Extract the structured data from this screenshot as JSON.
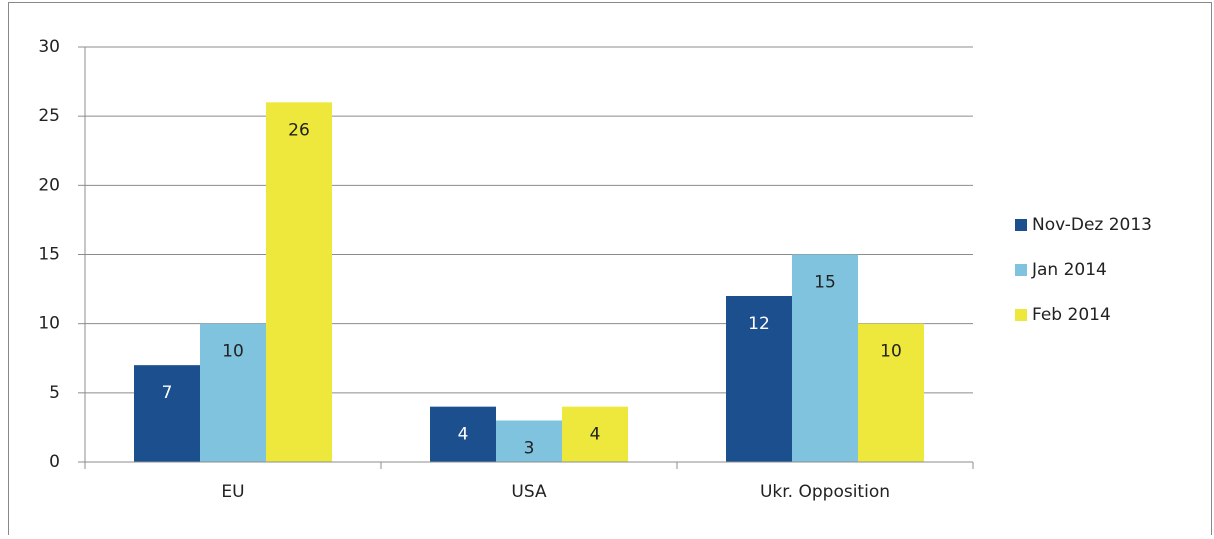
{
  "chart_data": {
    "type": "bar",
    "categories": [
      "EU",
      "USA",
      "Ukr. Opposition"
    ],
    "series": [
      {
        "name": "Nov-Dez 2013",
        "color": "#1b4f8e",
        "values": [
          7,
          4,
          12
        ]
      },
      {
        "name": "Jan 2014",
        "color": "#80c3df",
        "values": [
          10,
          3,
          15
        ]
      },
      {
        "name": "Feb 2014",
        "color": "#ede83b",
        "values": [
          26,
          4,
          10
        ]
      }
    ],
    "ylim": [
      0,
      30
    ],
    "yticks": [
      0,
      5,
      10,
      15,
      20,
      25,
      30
    ],
    "grid": true,
    "legend": "right"
  }
}
